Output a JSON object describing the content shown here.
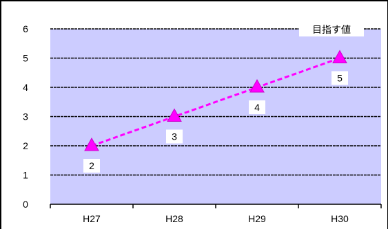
{
  "chart_data": {
    "type": "line",
    "categories": [
      "H27",
      "H28",
      "H29",
      "H30"
    ],
    "series": [
      {
        "name": "目指す値",
        "values": [
          2,
          3,
          4,
          5
        ],
        "color": "#FF00FF",
        "marker": "triangle",
        "line_style": "dashed"
      }
    ],
    "data_labels": [
      "2",
      "3",
      "4",
      "5"
    ],
    "y_ticks": [
      "0",
      "1",
      "2",
      "3",
      "4",
      "5",
      "6"
    ],
    "ylim": [
      0,
      6
    ],
    "legend_position": "top-right",
    "grid": true,
    "plot_background": "#CCCCFF",
    "title": "",
    "xlabel": "",
    "ylabel": ""
  }
}
